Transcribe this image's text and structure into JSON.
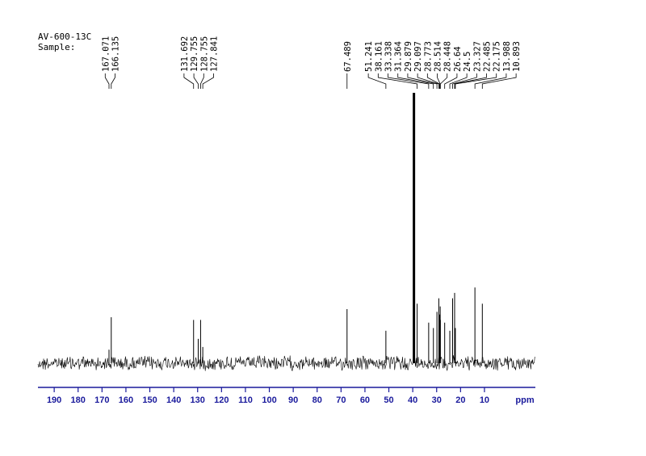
{
  "chart_data": {
    "type": "spectrum",
    "annotations": [
      "AV-600-13C",
      "Sample:"
    ],
    "x_label": "ppm",
    "xlim": [
      196.8,
      -11.3
    ],
    "xticks": [
      190,
      180,
      170,
      160,
      150,
      140,
      130,
      120,
      110,
      100,
      90,
      80,
      70,
      60,
      50,
      40,
      30,
      20,
      10
    ],
    "ylim": [
      0,
      100
    ],
    "color": "#000000",
    "axis_color": "#1a1a9c",
    "peaks": {
      "x": [
        167.071,
        166.135,
        131.692,
        129.755,
        128.755,
        127.841,
        67.489,
        51.241,
        38.161,
        33.338,
        31.364,
        29.879,
        29.097,
        28.773,
        28.514,
        28.448,
        26.64,
        24.5,
        23.327,
        22.485,
        22.175,
        13.988,
        10.893
      ],
      "values": [
        5,
        17,
        16,
        9,
        16,
        6,
        20,
        12,
        22,
        15,
        13,
        19,
        24,
        18,
        21,
        16,
        15,
        12,
        24,
        26,
        13,
        28,
        22
      ]
    },
    "unlabeled_peaks": {
      "x": [
        39.5
      ],
      "values": [
        100
      ]
    }
  }
}
